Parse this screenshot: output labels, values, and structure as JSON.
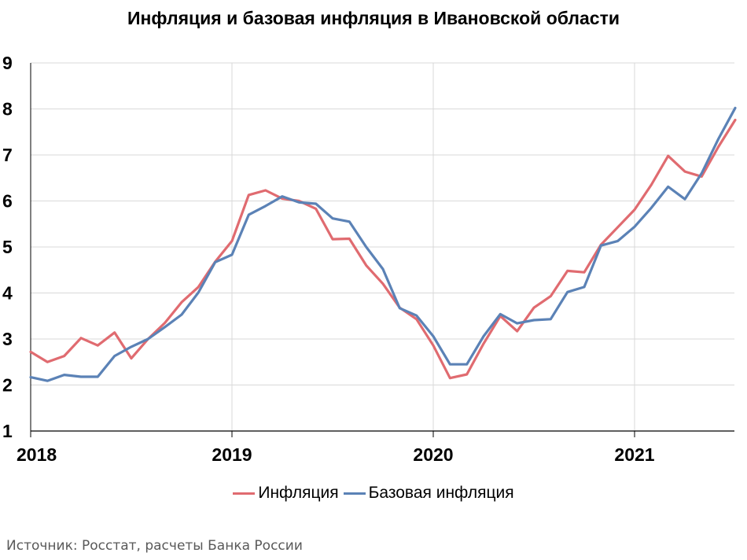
{
  "title": "Инфляция и базовая инфляция в Ивановской области",
  "source": "Источник: Росстат, расчеты Банка России",
  "colors": {
    "inflation": "#E06B70",
    "core": "#5B82B6",
    "grid": "#d9d9d9",
    "axis": "#000000"
  },
  "chart_data": {
    "type": "line",
    "title": "Инфляция и базовая инфляция в Ивановской области",
    "xlabel": "",
    "ylabel": "",
    "ylim": [
      1,
      9
    ],
    "yticks": [
      "1",
      "2",
      "3",
      "4",
      "5",
      "6",
      "7",
      "8",
      "9"
    ],
    "xticks": [
      "2018",
      "2019",
      "2020",
      "2021"
    ],
    "grid": true,
    "legend_position": "bottom",
    "x": [
      "2018-01",
      "2018-02",
      "2018-03",
      "2018-04",
      "2018-05",
      "2018-06",
      "2018-07",
      "2018-08",
      "2018-09",
      "2018-10",
      "2018-11",
      "2018-12",
      "2019-01",
      "2019-02",
      "2019-03",
      "2019-04",
      "2019-05",
      "2019-06",
      "2019-07",
      "2019-08",
      "2019-09",
      "2019-10",
      "2019-11",
      "2019-12",
      "2020-01",
      "2020-02",
      "2020-03",
      "2020-04",
      "2020-05",
      "2020-06",
      "2020-07",
      "2020-08",
      "2020-09",
      "2020-10",
      "2020-11",
      "2020-12",
      "2021-01",
      "2021-02",
      "2021-03",
      "2021-04",
      "2021-05",
      "2021-06",
      "2021-07"
    ],
    "series": [
      {
        "name": "Инфляция",
        "values": [
          2.72,
          2.5,
          2.63,
          3.02,
          2.86,
          3.14,
          2.58,
          3.0,
          3.35,
          3.8,
          4.13,
          4.68,
          5.13,
          6.13,
          6.23,
          6.05,
          6.0,
          5.83,
          5.17,
          5.18,
          4.6,
          4.2,
          3.68,
          3.43,
          2.86,
          2.15,
          2.23,
          2.9,
          3.5,
          3.17,
          3.68,
          3.93,
          4.48,
          4.45,
          5.05,
          5.43,
          5.81,
          6.35,
          6.98,
          6.64,
          6.53,
          7.18,
          7.76
        ]
      },
      {
        "name": "Базовая инфляция",
        "values": [
          2.17,
          2.09,
          2.22,
          2.18,
          2.18,
          2.63,
          2.83,
          3.0,
          3.26,
          3.53,
          4.01,
          4.67,
          4.83,
          5.7,
          5.89,
          6.1,
          5.97,
          5.94,
          5.62,
          5.55,
          5.0,
          4.52,
          3.67,
          3.51,
          3.06,
          2.45,
          2.45,
          3.06,
          3.54,
          3.34,
          3.41,
          3.43,
          4.02,
          4.13,
          5.03,
          5.13,
          5.44,
          5.85,
          6.31,
          6.04,
          6.6,
          7.35,
          8.02
        ]
      }
    ]
  }
}
